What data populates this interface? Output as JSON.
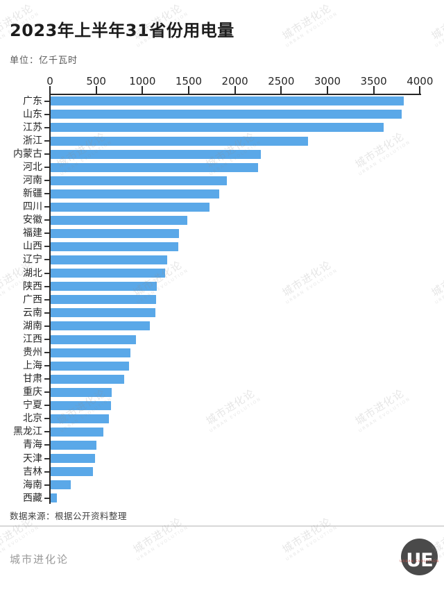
{
  "title": "2023年上半年31省份用电量",
  "subtitle": "单位：亿千瓦时",
  "source_note": "数据来源：根据公开资料整理",
  "footer": {
    "brand": "城市进化论",
    "logo_text": "UE",
    "logo_subtext": "URBAN EVOLUTION"
  },
  "watermark": {
    "line1": "城市进化论",
    "line2": "URBAN EVOLUTION"
  },
  "colors": {
    "bar": "#5AA8E8",
    "axis": "#262626",
    "title": "#1C1C1C",
    "subtitle": "#595959",
    "source": "#404040",
    "footer_text": "#9A9A9A",
    "divider": "#D8D8D8",
    "logo_bg": "#4A4A4A",
    "logo_accent": "#C0564E"
  },
  "chart_data": {
    "type": "bar",
    "orientation": "horizontal",
    "title": "2023年上半年31省份用电量",
    "unit": "亿千瓦时",
    "xlabel": "",
    "ylabel": "",
    "xlim": [
      0,
      4000
    ],
    "xticks": [
      0,
      500,
      1000,
      1500,
      2000,
      2500,
      3000,
      3500,
      4000
    ],
    "grid": false,
    "legend": false,
    "categories": [
      "广东",
      "山东",
      "江苏",
      "浙江",
      "内蒙古",
      "河北",
      "河南",
      "新疆",
      "四川",
      "安徽",
      "福建",
      "山西",
      "辽宁",
      "湖北",
      "陕西",
      "广西",
      "云南",
      "湖南",
      "江西",
      "贵州",
      "上海",
      "甘肃",
      "重庆",
      "宁夏",
      "北京",
      "黑龙江",
      "青海",
      "天津",
      "吉林",
      "海南",
      "西藏"
    ],
    "values": [
      3816,
      3798,
      3602,
      2779,
      2275,
      2243,
      1906,
      1820,
      1718,
      1479,
      1390,
      1378,
      1260,
      1240,
      1146,
      1138,
      1130,
      1075,
      925,
      862,
      848,
      795,
      660,
      655,
      630,
      570,
      495,
      483,
      454,
      217,
      68
    ]
  }
}
